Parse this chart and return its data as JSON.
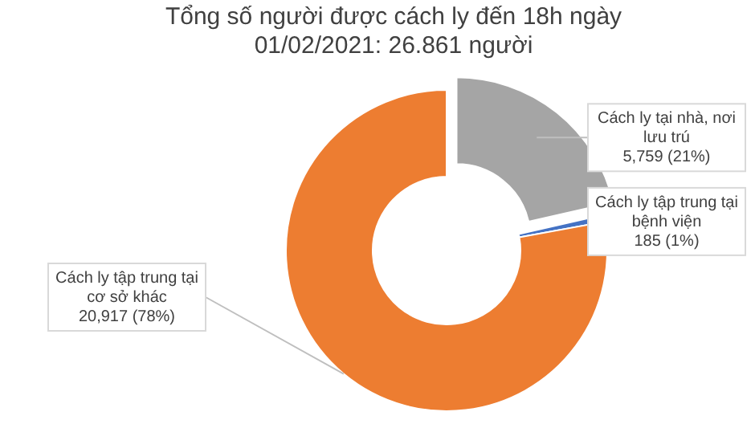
{
  "chart_data": {
    "type": "donut",
    "title": "Tổng số người được cách ly đến 18h ngày 01/02/2021: 26.861 người",
    "categories": [
      "Cách ly tại nhà, nơi lưu trú",
      "Cách ly tập trung tại bệnh viện",
      "Cách ly tập trung tại cơ sở khác"
    ],
    "values": [
      5759,
      185,
      20917
    ],
    "colors": [
      "#a5a5a5",
      "#4472c4",
      "#ed7d31"
    ],
    "value_labels": [
      "5,759 (21%)",
      "185 (1%)",
      "20,917 (78%)"
    ],
    "legend": false
  }
}
